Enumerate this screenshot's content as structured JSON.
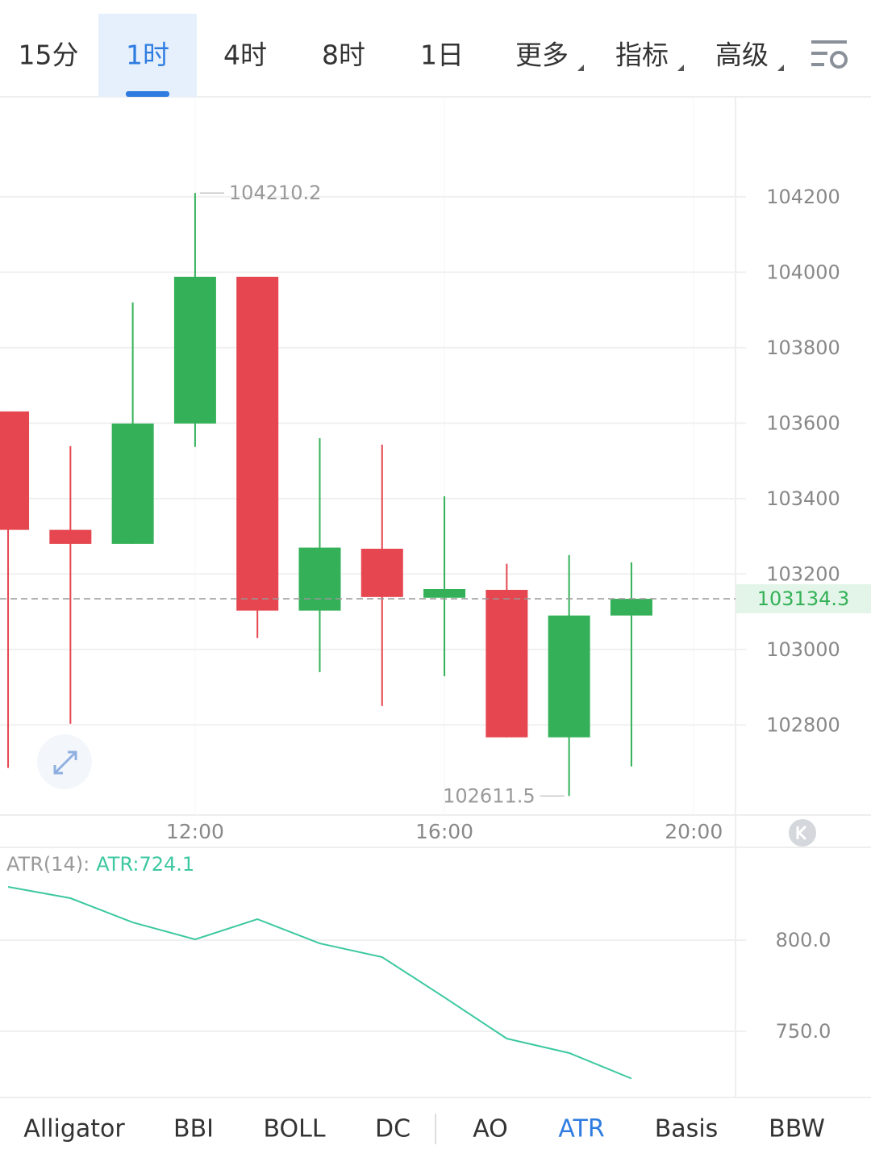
{
  "tabs": [
    {
      "label": "15分"
    },
    {
      "label": "1时",
      "active": true
    },
    {
      "label": "4时"
    },
    {
      "label": "8时"
    },
    {
      "label": "1日"
    },
    {
      "label": "更多",
      "dropdown": true
    },
    {
      "label": "指标",
      "dropdown": true
    },
    {
      "label": "高级",
      "dropdown": true
    }
  ],
  "chart_data": [
    {
      "type": "candlestick",
      "x": [
        9,
        10,
        11,
        12,
        13,
        14,
        15,
        16,
        17,
        18,
        19
      ],
      "xlim": [
        8.87,
        20.67
      ],
      "xticks": [
        {
          "value": 12,
          "label": "12:00"
        },
        {
          "value": 16,
          "label": "16:00"
        },
        {
          "value": 20,
          "label": "20:00"
        }
      ],
      "open": [
        103631,
        103317,
        103280,
        103599,
        103988,
        103103,
        103267,
        103137,
        103158,
        102767,
        103090
      ],
      "high": [
        103631,
        103539,
        103920,
        104210.2,
        103988,
        103560,
        103543,
        103406,
        103227,
        103250,
        103231
      ],
      "low": [
        102686,
        102803,
        103280,
        103537,
        103030,
        102940,
        102850,
        102929,
        102767,
        102611.5,
        102690
      ],
      "close": [
        103317,
        103280,
        103599,
        103988,
        103103,
        103270,
        103139,
        103160,
        102767,
        103090,
        103134.3
      ],
      "up_color": "#34b158",
      "down_color": "#e5464f",
      "ylim": [
        102561,
        104465
      ],
      "yticks": [
        102800,
        103000,
        103200,
        103400,
        103600,
        103800,
        104000,
        104200
      ],
      "grid": true
    },
    {
      "type": "line",
      "title": "ATR(14):",
      "x": [
        9,
        10,
        11,
        12,
        13,
        14,
        15,
        16,
        17,
        18,
        19
      ],
      "xlim": [
        8.87,
        20.67
      ],
      "series": [
        {
          "label": "ATR:724.1",
          "color": "#3cc8a0",
          "values": [
            829.2,
            823.0,
            809.7,
            800.4,
            811.5,
            798.2,
            790.7,
            768.6,
            746.0,
            738.1,
            724.1
          ]
        }
      ],
      "ylim": [
        713.7,
        850.0
      ],
      "yticks": [
        {
          "value": 750,
          "label": "750.0"
        },
        {
          "value": 800,
          "label": "800.0"
        }
      ],
      "grid": true
    }
  ],
  "indicator_tabs": [
    {
      "label": "Alligator"
    },
    {
      "label": "BBI"
    },
    {
      "label": "BOLL"
    },
    {
      "label": "DC"
    },
    {
      "label": "AO"
    },
    {
      "label": "ATR",
      "active": true
    },
    {
      "label": "Basis"
    },
    {
      "label": "BBW"
    }
  ]
}
